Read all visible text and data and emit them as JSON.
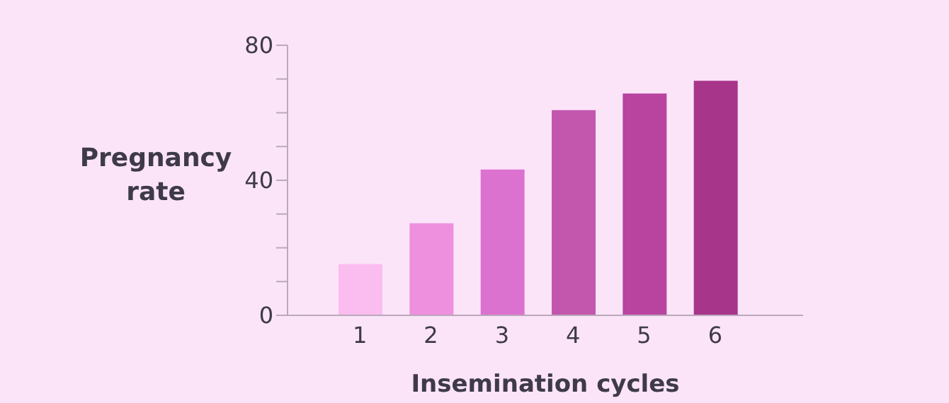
{
  "chart_data": {
    "type": "bar",
    "xlabel": "Insemination cycles",
    "ylabel": "Pregnancy rate",
    "categories": [
      "1",
      "2",
      "3",
      "4",
      "5",
      "6"
    ],
    "values": [
      15.2,
      27.3,
      43.2,
      60.8,
      65.7,
      69.5
    ],
    "colors": [
      "#fbbcef",
      "#ee90de",
      "#dc72d0",
      "#c257ad",
      "#b8449f",
      "#a7358a"
    ],
    "ylim": [
      0,
      80
    ],
    "yticks": [
      0,
      {
        "value": 10,
        "label": null
      },
      {
        "value": 20,
        "label": null
      },
      {
        "value": 30,
        "label": null
      },
      40,
      {
        "value": 50,
        "label": null
      },
      {
        "value": 60,
        "label": null
      },
      {
        "value": 70,
        "label": null
      },
      80
    ],
    "grid": false
  }
}
